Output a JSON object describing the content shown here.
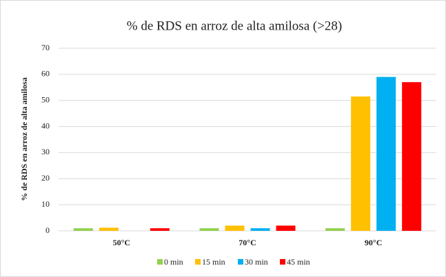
{
  "chart_data": {
    "type": "bar",
    "title": "% de RDS en arroz de alta amilosa (>28)",
    "y_label": "% de RDS en arroz de alta amilosa",
    "categories": [
      "50°C",
      "70°C",
      "90°C"
    ],
    "series": [
      {
        "name": "0 min",
        "color": "#92d050",
        "values": [
          1,
          1,
          1
        ]
      },
      {
        "name": "15 min",
        "color": "#ffc000",
        "values": [
          1.2,
          2,
          51.5
        ]
      },
      {
        "name": "30 min",
        "color": "#00b0f0",
        "values": [
          0,
          1,
          59
        ]
      },
      {
        "name": "45 min",
        "color": "#ff0000",
        "values": [
          1,
          2,
          57
        ]
      }
    ],
    "ylim": [
      0,
      70
    ],
    "yticks": [
      0,
      10,
      20,
      30,
      40,
      50,
      60,
      70
    ],
    "grid": true
  }
}
